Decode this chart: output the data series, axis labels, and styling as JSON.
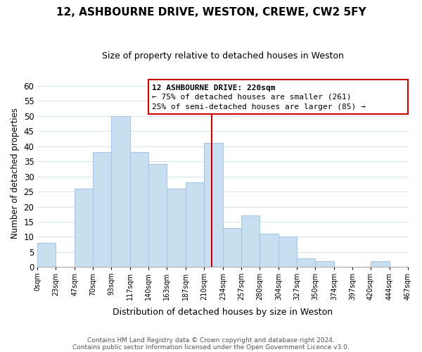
{
  "title": "12, ASHBOURNE DRIVE, WESTON, CREWE, CW2 5FY",
  "subtitle": "Size of property relative to detached houses in Weston",
  "xlabel": "Distribution of detached houses by size in Weston",
  "ylabel": "Number of detached properties",
  "bar_edges": [
    0,
    23,
    47,
    70,
    93,
    117,
    140,
    163,
    187,
    210,
    234,
    257,
    280,
    304,
    327,
    350,
    374,
    397,
    420,
    444,
    467
  ],
  "bar_heights": [
    8,
    0,
    26,
    38,
    50,
    38,
    34,
    26,
    28,
    41,
    13,
    17,
    11,
    10,
    3,
    2,
    0,
    0,
    2,
    0
  ],
  "bar_color": "#c8dff0",
  "bar_edge_color": "#a8c8e8",
  "ylim": [
    0,
    62
  ],
  "yticks": [
    0,
    5,
    10,
    15,
    20,
    25,
    30,
    35,
    40,
    45,
    50,
    55,
    60
  ],
  "tick_labels": [
    "0sqm",
    "23sqm",
    "47sqm",
    "70sqm",
    "93sqm",
    "117sqm",
    "140sqm",
    "163sqm",
    "187sqm",
    "210sqm",
    "234sqm",
    "257sqm",
    "280sqm",
    "304sqm",
    "327sqm",
    "350sqm",
    "374sqm",
    "397sqm",
    "420sqm",
    "444sqm",
    "467sqm"
  ],
  "property_size": 220,
  "vline_color": "#cc0000",
  "annotation_title": "12 ASHBOURNE DRIVE: 220sqm",
  "annotation_line1": "← 75% of detached houses are smaller (261)",
  "annotation_line2": "25% of semi-detached houses are larger (85) →",
  "annotation_box_edge": "#cc0000",
  "footnote1": "Contains HM Land Registry data © Crown copyright and database right 2024.",
  "footnote2": "Contains public sector information licensed under the Open Government Licence v3.0.",
  "background_color": "#ffffff",
  "grid_color": "#d8e4f0"
}
